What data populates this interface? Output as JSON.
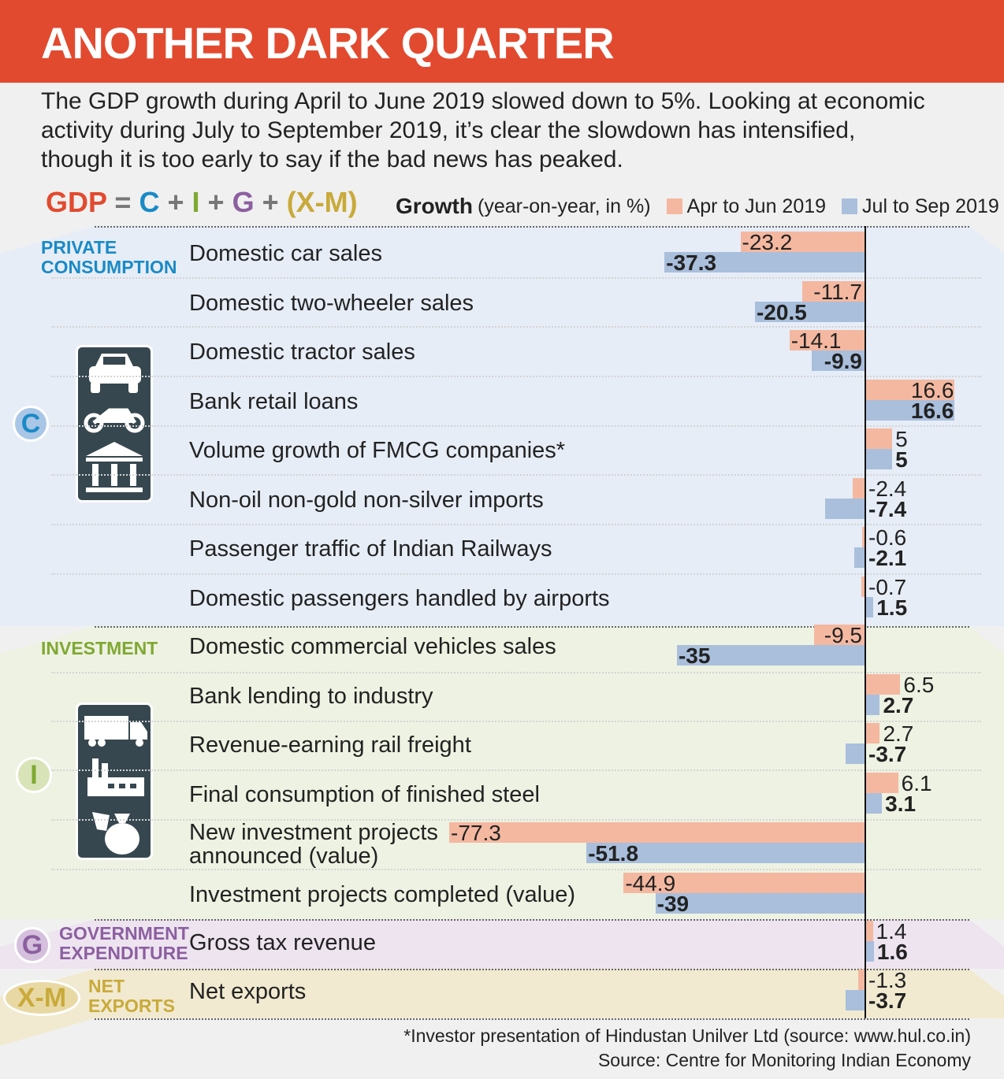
{
  "header": {
    "title": "ANOTHER DARK QUARTER"
  },
  "intro": "The GDP growth during April to June 2019 slowed down to 5%. Looking at economic activity during July to September 2019, it’s clear the slowdown has intensified, though it is too early to say if the bad news has peaked.",
  "formula": {
    "gdp": "GDP",
    "eq": "=",
    "c": "C",
    "plus": "+",
    "i": "I",
    "g": "G",
    "xm": "(X-M)"
  },
  "colors": {
    "apr": "#f4b8a0",
    "jul": "#a9bfdc",
    "c": "#1a8ac6",
    "i": "#7fa832",
    "g": "#8c5fa0",
    "xm": "#c9aa3a"
  },
  "sections": {
    "c": {
      "letter": "C",
      "label1": "PRIVATE",
      "label2": "CONSUMPTION"
    },
    "i": {
      "letter": "I",
      "label1": "INVESTMENT"
    },
    "g": {
      "letter": "G",
      "label1": "GOVERNMENT",
      "label2": "EXPENDITURE"
    },
    "xm": {
      "letter": "X-M",
      "label1": "NET",
      "label2": "EXPORTS"
    }
  },
  "chart_data": {
    "type": "bar",
    "orientation": "horizontal",
    "title": "Growth",
    "subtitle": "(year-on-year, in %)",
    "legend": [
      "Apr to Jun 2019",
      "Jul to Sep 2019"
    ],
    "categories": [
      [
        "Domestic car sales"
      ],
      [
        "Domestic two-wheeler sales"
      ],
      [
        "Domestic tractor sales"
      ],
      [
        "Bank retail loans"
      ],
      [
        "Volume growth of FMCG companies*"
      ],
      [
        "Non-oil non-gold non-silver imports"
      ],
      [
        "Passenger traffic of Indian Railways"
      ],
      [
        "Domestic passengers handled by airports"
      ],
      [
        "Domestic commercial vehicles sales"
      ],
      [
        "Bank lending to industry"
      ],
      [
        "Revenue-earning rail freight"
      ],
      [
        "Final consumption of finished steel"
      ],
      [
        "New investment projects",
        "announced (value)"
      ],
      [
        "Investment projects completed (value)"
      ],
      [
        "Gross tax revenue"
      ],
      [
        "Net exports"
      ]
    ],
    "series": [
      {
        "name": "Apr to Jun 2019",
        "values": [
          -23.2,
          -11.7,
          -14.1,
          16.6,
          5,
          -2.4,
          -0.6,
          -0.7,
          -9.5,
          6.5,
          2.7,
          6.1,
          -77.3,
          -44.9,
          1.4,
          -1.3
        ]
      },
      {
        "name": "Jul to Sep 2019",
        "values": [
          -37.3,
          -20.5,
          -9.9,
          16.6,
          5,
          -7.4,
          -2.1,
          1.5,
          -35,
          2.7,
          -3.7,
          3.1,
          -51.8,
          -39,
          1.6,
          -3.7
        ]
      }
    ]
  },
  "footnotes": [
    "*Investor presentation of Hindustan Unilver Ltd (source: www.hul.co.in)",
    "Source: Centre for Monitoring Indian Economy"
  ]
}
